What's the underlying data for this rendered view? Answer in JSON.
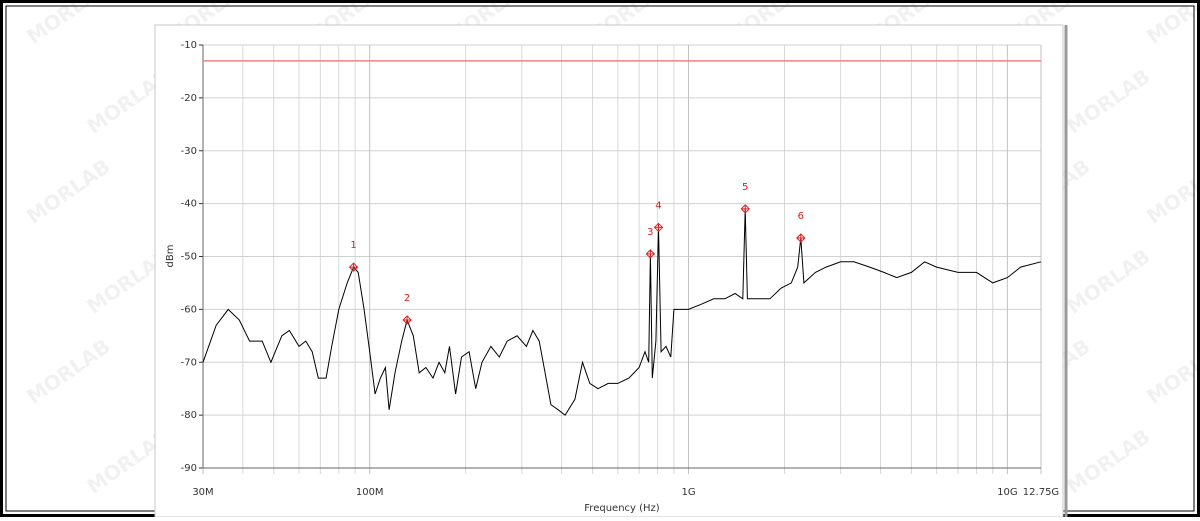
{
  "chart_data": {
    "type": "line",
    "watermark": "MORLAB",
    "ylabel": "dBm",
    "xlabel": "Frequency (Hz)",
    "log_x": true,
    "grid": true,
    "xlim": [
      30000000,
      12750000000
    ],
    "ylim": [
      -90,
      -10
    ],
    "yticks": [
      -90,
      -80,
      -70,
      -60,
      -50,
      -40,
      -30,
      -20,
      -10
    ],
    "xticks": [
      {
        "value": 30000000,
        "label": "30M"
      },
      {
        "value": 100000000,
        "label": "100M"
      },
      {
        "value": 1000000000,
        "label": "1G"
      },
      {
        "value": 10000000000,
        "label": "10G"
      },
      {
        "value": 12750000000,
        "label": "12.75G"
      }
    ],
    "x_minor_grid": [
      40000000,
      50000000,
      60000000,
      70000000,
      80000000,
      90000000,
      200000000,
      300000000,
      400000000,
      500000000,
      600000000,
      700000000,
      800000000,
      900000000,
      2000000000,
      3000000000,
      4000000000,
      5000000000,
      6000000000,
      7000000000,
      8000000000,
      9000000000
    ],
    "limit_line": {
      "value": -13,
      "color": "#f08080"
    },
    "x": [
      30000000,
      33000000,
      36000000,
      39000000,
      42000000,
      46000000,
      49000000,
      53000000,
      56000000,
      60000000,
      63000000,
      66000000,
      69000000,
      73000000,
      76000000,
      80000000,
      85000000,
      89000000,
      92000000,
      96000000,
      100000000,
      104000000,
      108000000,
      112000000,
      115000000,
      120000000,
      126000000,
      131000000,
      137000000,
      143000000,
      150000000,
      158000000,
      165000000,
      172000000,
      178000000,
      186000000,
      194000000,
      205000000,
      215000000,
      225000000,
      240000000,
      255000000,
      270000000,
      290000000,
      310000000,
      325000000,
      340000000,
      355000000,
      370000000,
      390000000,
      410000000,
      440000000,
      465000000,
      490000000,
      520000000,
      560000000,
      600000000,
      650000000,
      700000000,
      730000000,
      750000000,
      759000000,
      770000000,
      790000000,
      805000000,
      820000000,
      850000000,
      880000000,
      900000000,
      950000000,
      1000000000,
      1100000000,
      1200000000,
      1300000000,
      1400000000,
      1480000000,
      1506000000,
      1530000000,
      1650000000,
      1800000000,
      1950000000,
      2100000000,
      2200000000,
      2250000000,
      2300000000,
      2500000000,
      2700000000,
      3000000000,
      3300000000,
      3700000000,
      4100000000,
      4500000000,
      5000000000,
      5500000000,
      6000000000,
      7000000000,
      8000000000,
      9000000000,
      10000000000,
      11000000000,
      12750000000
    ],
    "series": [
      {
        "color": "#000000",
        "values": [
          -70,
          -63,
          -60,
          -62,
          -66,
          -66,
          -70,
          -65,
          -64,
          -67,
          -66,
          -68,
          -73,
          -73,
          -67,
          -60,
          -55,
          -52,
          -53,
          -60,
          -68,
          -76,
          -73,
          -71,
          -79,
          -72,
          -66,
          -62,
          -65,
          -72,
          -71,
          -73,
          -70,
          -72,
          -67,
          -76,
          -69,
          -68,
          -75,
          -70,
          -67,
          -69,
          -66,
          -65,
          -67,
          -64,
          -66,
          -72,
          -78,
          -79,
          -80,
          -77,
          -70,
          -74,
          -75,
          -74,
          -74,
          -73,
          -71,
          -68,
          -70,
          -49.5,
          -73,
          -66,
          -44.5,
          -68,
          -67,
          -69,
          -60,
          -60,
          -60,
          -59,
          -58,
          -58,
          -57,
          -58,
          -41,
          -58,
          -58,
          -58,
          -56,
          -55,
          -52,
          -46.5,
          -55,
          -53,
          -52,
          -51,
          -51,
          -52,
          -53,
          -54,
          -53,
          -51,
          -52,
          -53,
          -53,
          -55,
          -54,
          -52,
          -51
        ]
      }
    ],
    "markers": [
      {
        "label": "1",
        "x": 89000000,
        "y": -52
      },
      {
        "label": "2",
        "x": 131000000,
        "y": -62
      },
      {
        "label": "3",
        "x": 759000000,
        "y": -49.5
      },
      {
        "label": "4",
        "x": 805000000,
        "y": -44.5
      },
      {
        "label": "5",
        "x": 1506000000,
        "y": -41
      },
      {
        "label": "6",
        "x": 2250000000,
        "y": -46.5
      }
    ],
    "marker_color": "#e02020"
  }
}
